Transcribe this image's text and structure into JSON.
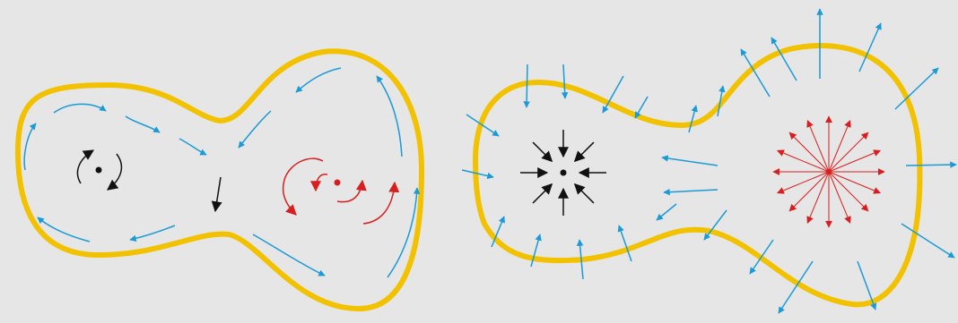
{
  "colors": {
    "background": "#e6e6e6",
    "boundary": "#f2c200",
    "flow": "#1a9ad6",
    "black": "#111111",
    "red": "#d81e1e"
  },
  "panels": [
    {
      "id": "left",
      "description_icons": [
        "circulation-arrow-icon",
        "vortex-center-icon",
        "counter-rotating-vortex-icon"
      ]
    },
    {
      "id": "right",
      "description_icons": [
        "sink-icon",
        "source-icon",
        "flux-arrow-icon"
      ]
    }
  ]
}
